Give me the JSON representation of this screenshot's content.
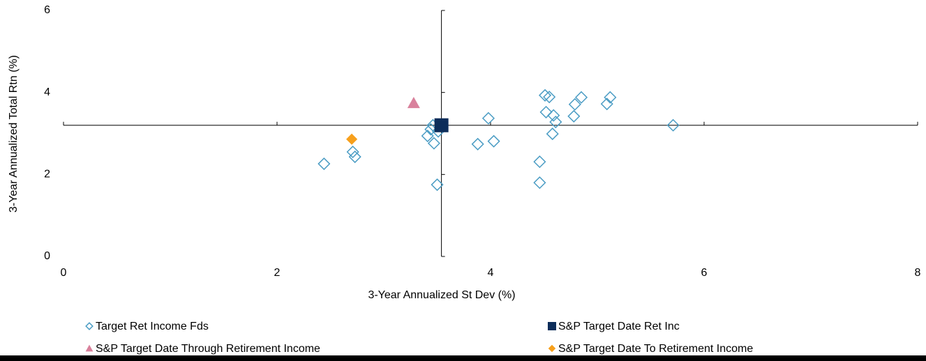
{
  "chart_data": {
    "type": "scatter",
    "xlabel": "3-Year Annualized St Dev (%)",
    "ylabel": "3-Year Annualized Total Rtn (%)",
    "xlim": [
      0,
      8
    ],
    "ylim": [
      0,
      6
    ],
    "xticks": [
      0,
      2,
      4,
      6,
      8
    ],
    "yticks": [
      0,
      2,
      4,
      6
    ],
    "series": [
      {
        "name": "Target Ret Income Fds",
        "color": "#4a9cc4",
        "marker": "diamond-open",
        "x": [
          2.44,
          2.71,
          2.73,
          3.41,
          3.44,
          3.46,
          3.47,
          3.5,
          3.51,
          3.88,
          3.98,
          4.03,
          4.46,
          4.46,
          4.51,
          4.55,
          4.52,
          4.59,
          4.61,
          4.58,
          4.78,
          4.79,
          4.85,
          5.09,
          5.12,
          5.71
        ],
        "y": [
          2.26,
          2.55,
          2.43,
          2.94,
          3.1,
          3.2,
          2.76,
          1.75,
          3.05,
          2.74,
          3.37,
          2.81,
          2.31,
          1.8,
          3.93,
          3.89,
          3.52,
          3.44,
          3.28,
          2.99,
          3.42,
          3.71,
          3.88,
          3.72,
          3.88,
          3.2
        ]
      },
      {
        "name": "S&P Target Date Ret Inc",
        "color": "#0d2d5a",
        "marker": "square",
        "x": [
          3.54
        ],
        "y": [
          3.2
        ]
      },
      {
        "name": "S&P Target Date Through Retirement Income",
        "color": "#d9819c",
        "marker": "triangle",
        "x": [
          3.28
        ],
        "y": [
          3.74
        ]
      },
      {
        "name": "S&P Target Date To Retirement Income",
        "color": "#f7a01c",
        "marker": "diamond",
        "x": [
          2.7
        ],
        "y": [
          2.86
        ]
      }
    ]
  }
}
